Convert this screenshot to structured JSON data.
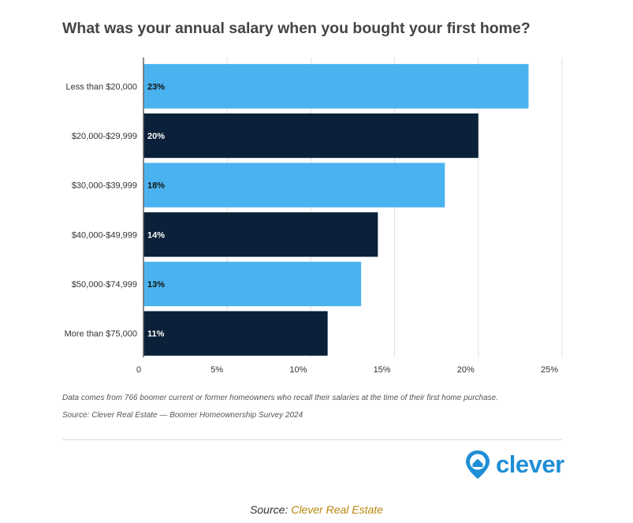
{
  "chart_data": {
    "type": "bar",
    "orientation": "horizontal",
    "title": "What was your annual salary when you bought your first home?",
    "categories": [
      "Less than $20,000",
      "$20,000-$29,999",
      "$30,000-$39,999",
      "$40,000-$49,999",
      "$50,000-$74,999",
      "More than $75,000"
    ],
    "values": [
      23,
      20,
      18,
      14,
      13,
      11
    ],
    "data_labels": [
      "23%",
      "20%",
      "18%",
      "14%",
      "13%",
      "11%"
    ],
    "x_ticks": [
      0,
      5,
      10,
      15,
      20,
      25
    ],
    "x_tick_labels": [
      "0",
      "5%",
      "10%",
      "15%",
      "20%",
      "25%"
    ],
    "xlim": [
      0,
      25
    ],
    "grid": true,
    "legend": "none",
    "bar_colors": [
      "#4ab3ef",
      "#0b2039"
    ]
  },
  "notes": {
    "description": "Data comes from 766 boomer current or former homeowners who recall their salaries at the time of their first home purchase.",
    "source": "Source: Clever Real Estate — Boomer Homeownership Survey 2024"
  },
  "brand": {
    "logo_text": "clever",
    "logo_icon": "home-pin-icon",
    "color": "#1f8ed6"
  },
  "caption": {
    "prefix": "Source: ",
    "link_text": "Clever Real Estate",
    "link_color": "#b7860b"
  }
}
